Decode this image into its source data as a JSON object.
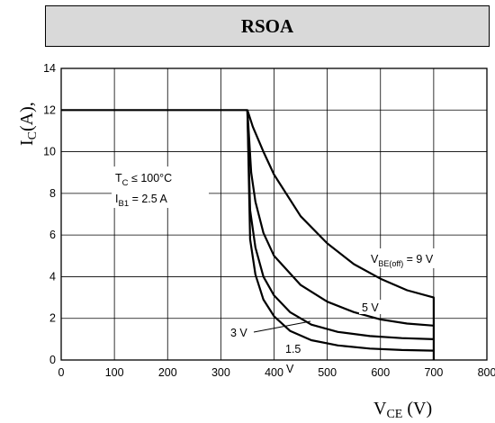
{
  "title": "RSOA",
  "chart_data": {
    "type": "line",
    "title": "RSOA",
    "xlabel_main": "V",
    "xlabel_sub": "CE",
    "xlabel_unit": " (V)",
    "ylabel_main": "I",
    "ylabel_sub": "C",
    "ylabel_unit": "(A),",
    "xlim": [
      0,
      800
    ],
    "ylim": [
      0,
      14
    ],
    "xticks": [
      0,
      100,
      200,
      300,
      400,
      500,
      600,
      700,
      800
    ],
    "yticks": [
      0,
      2,
      4,
      6,
      8,
      10,
      12,
      14
    ],
    "grid": true,
    "series": [
      {
        "name": "9 V",
        "x": [
          0,
          350,
          360,
          380,
          400,
          450,
          500,
          550,
          600,
          650,
          700,
          700
        ],
        "y": [
          12,
          12,
          11.2,
          10.0,
          8.9,
          6.9,
          5.6,
          4.6,
          3.9,
          3.35,
          3.0,
          0
        ]
      },
      {
        "name": "5 V",
        "x": [
          350,
          357,
          365,
          380,
          400,
          450,
          500,
          550,
          600,
          650,
          700
        ],
        "y": [
          12,
          9.0,
          7.6,
          6.1,
          5.0,
          3.6,
          2.8,
          2.3,
          1.95,
          1.75,
          1.65
        ]
      },
      {
        "name": "3 V",
        "x": [
          350,
          355,
          365,
          380,
          400,
          430,
          470,
          520,
          580,
          640,
          700
        ],
        "y": [
          12,
          7.2,
          5.4,
          4.0,
          3.1,
          2.3,
          1.7,
          1.35,
          1.15,
          1.05,
          1.0
        ]
      },
      {
        "name": "1.5 V",
        "x": [
          350,
          355,
          365,
          380,
          400,
          430,
          470,
          520,
          580,
          640,
          700
        ],
        "y": [
          12,
          5.8,
          4.1,
          2.9,
          2.1,
          1.4,
          0.95,
          0.7,
          0.55,
          0.48,
          0.45
        ]
      }
    ],
    "annotations": {
      "tc_main": "T",
      "tc_sub": "C",
      "tc_rest": " ≤ 100°C",
      "ib_main": "I",
      "ib_sub": "B1",
      "ib_rest": " = 2.5 A",
      "vbe_main": "V",
      "vbe_sub": "BE(off)",
      "vbe_rest": " = 9 V",
      "label_5v": "5 V",
      "label_3v": "3 V",
      "label_15_a": "1.5",
      "label_15_b": "V"
    },
    "colors": {
      "line": "#000000",
      "grid": "#000000",
      "title_bg": "#d9d9d9"
    }
  }
}
